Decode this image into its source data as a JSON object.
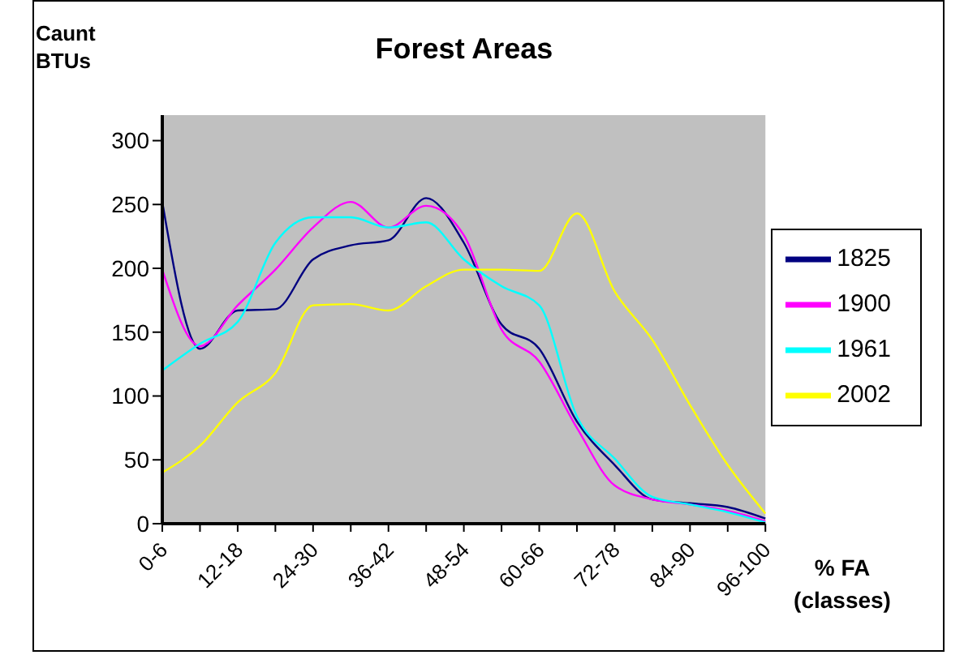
{
  "chart_data": {
    "type": "line",
    "title": "Forest Areas",
    "xlabel": "% FA (classes)",
    "ylabel": "Caunt BTUs",
    "categories": [
      "0-6",
      null,
      "12-18",
      null,
      "24-30",
      null,
      "36-42",
      null,
      "48-54",
      null,
      "60-66",
      null,
      "72-78",
      null,
      "84-90",
      null,
      "96-100"
    ],
    "series": [
      {
        "name": "1825",
        "color": "#000080",
        "values": [
          252,
          137,
          167,
          168,
          207,
          218,
          222,
          255,
          220,
          156,
          137,
          80,
          46,
          19,
          16,
          13,
          4
        ]
      },
      {
        "name": "1900",
        "color": "#ff00ff",
        "values": [
          199,
          139,
          171,
          199,
          232,
          252,
          232,
          249,
          226,
          152,
          127,
          75,
          30,
          19,
          15,
          10,
          2
        ]
      },
      {
        "name": "1961",
        "color": "#00ffff",
        "values": [
          120,
          141,
          158,
          220,
          240,
          240,
          232,
          236,
          207,
          186,
          171,
          84,
          51,
          21,
          15,
          9,
          1
        ]
      },
      {
        "name": "2002",
        "color": "#ffff00",
        "values": [
          40,
          61,
          95,
          118,
          171,
          172,
          167,
          186,
          199,
          199,
          198,
          243,
          182,
          144,
          93,
          46,
          8
        ]
      }
    ],
    "ylim": [
      0,
      320
    ],
    "yticks": [
      0,
      50,
      100,
      150,
      200,
      250,
      300
    ],
    "grid": false,
    "legend": "right",
    "marker": "none",
    "line_style": "solid"
  }
}
